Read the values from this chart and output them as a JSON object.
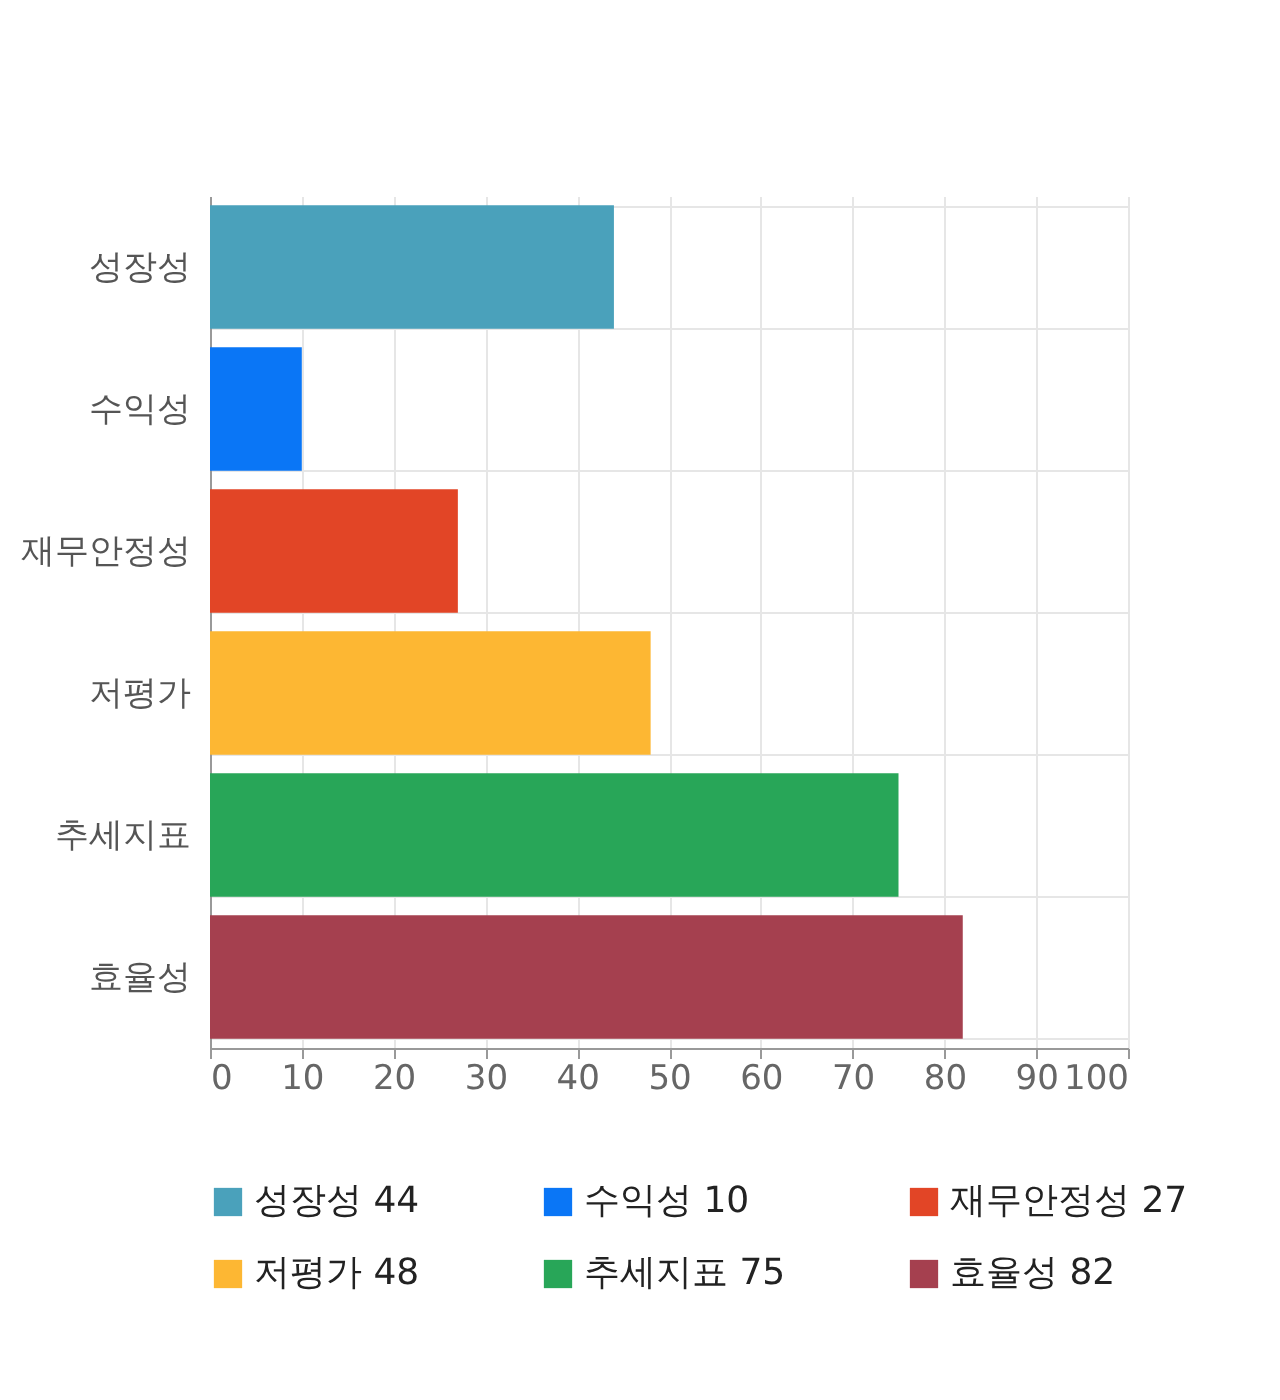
{
  "chart_data": {
    "type": "bar",
    "orientation": "horizontal",
    "categories": [
      "성장성",
      "수익성",
      "재무안정성",
      "저평가",
      "추세지표",
      "효율성"
    ],
    "series": [
      {
        "name": "성장성 44",
        "color": "#4aa1bb",
        "values": [
          44,
          null,
          null,
          null,
          null,
          null
        ]
      },
      {
        "name": "수익성 10",
        "color": "#0a76f6",
        "values": [
          null,
          10,
          null,
          null,
          null,
          null
        ]
      },
      {
        "name": "재무안정성 27",
        "color": "#e24526",
        "values": [
          null,
          null,
          27,
          null,
          null,
          null
        ]
      },
      {
        "name": "저평가 48",
        "color": "#fdb733",
        "values": [
          null,
          null,
          null,
          48,
          null,
          null
        ]
      },
      {
        "name": "추세지표 75",
        "color": "#28a658",
        "values": [
          null,
          null,
          null,
          null,
          75,
          null
        ]
      },
      {
        "name": "효율성 82",
        "color": "#a5404f",
        "values": [
          null,
          null,
          null,
          null,
          null,
          82
        ]
      }
    ],
    "xlim": [
      0,
      100
    ],
    "xticks": [
      0,
      10,
      20,
      30,
      40,
      50,
      60,
      70,
      80,
      90,
      100
    ],
    "grid": true,
    "legend": "bottom"
  }
}
